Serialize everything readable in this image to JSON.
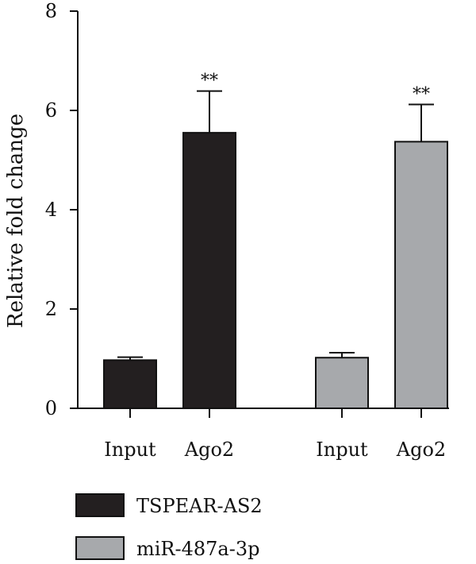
{
  "chart_data": {
    "type": "bar",
    "ylabel": "Relative fold change",
    "ylim": [
      0,
      8
    ],
    "yticks": [
      0,
      2,
      4,
      6,
      8
    ],
    "grid": false,
    "legend_position": "bottom-left",
    "bars": [
      {
        "category": "Input",
        "series": "TSPEAR-AS2",
        "value": 0.97,
        "error": 0.06,
        "annotation": ""
      },
      {
        "category": "Ago2",
        "series": "TSPEAR-AS2",
        "value": 5.55,
        "error": 0.84,
        "annotation": "**"
      },
      {
        "category": "Input",
        "series": "miR-487a-3p",
        "value": 1.02,
        "error": 0.1,
        "annotation": ""
      },
      {
        "category": "Ago2",
        "series": "miR-487a-3p",
        "value": 5.37,
        "error": 0.75,
        "annotation": "**"
      }
    ],
    "series": [
      {
        "name": "TSPEAR-AS2",
        "color": "#231f20"
      },
      {
        "name": "miR-487a-3p",
        "color": "#a7a9ac"
      }
    ]
  }
}
